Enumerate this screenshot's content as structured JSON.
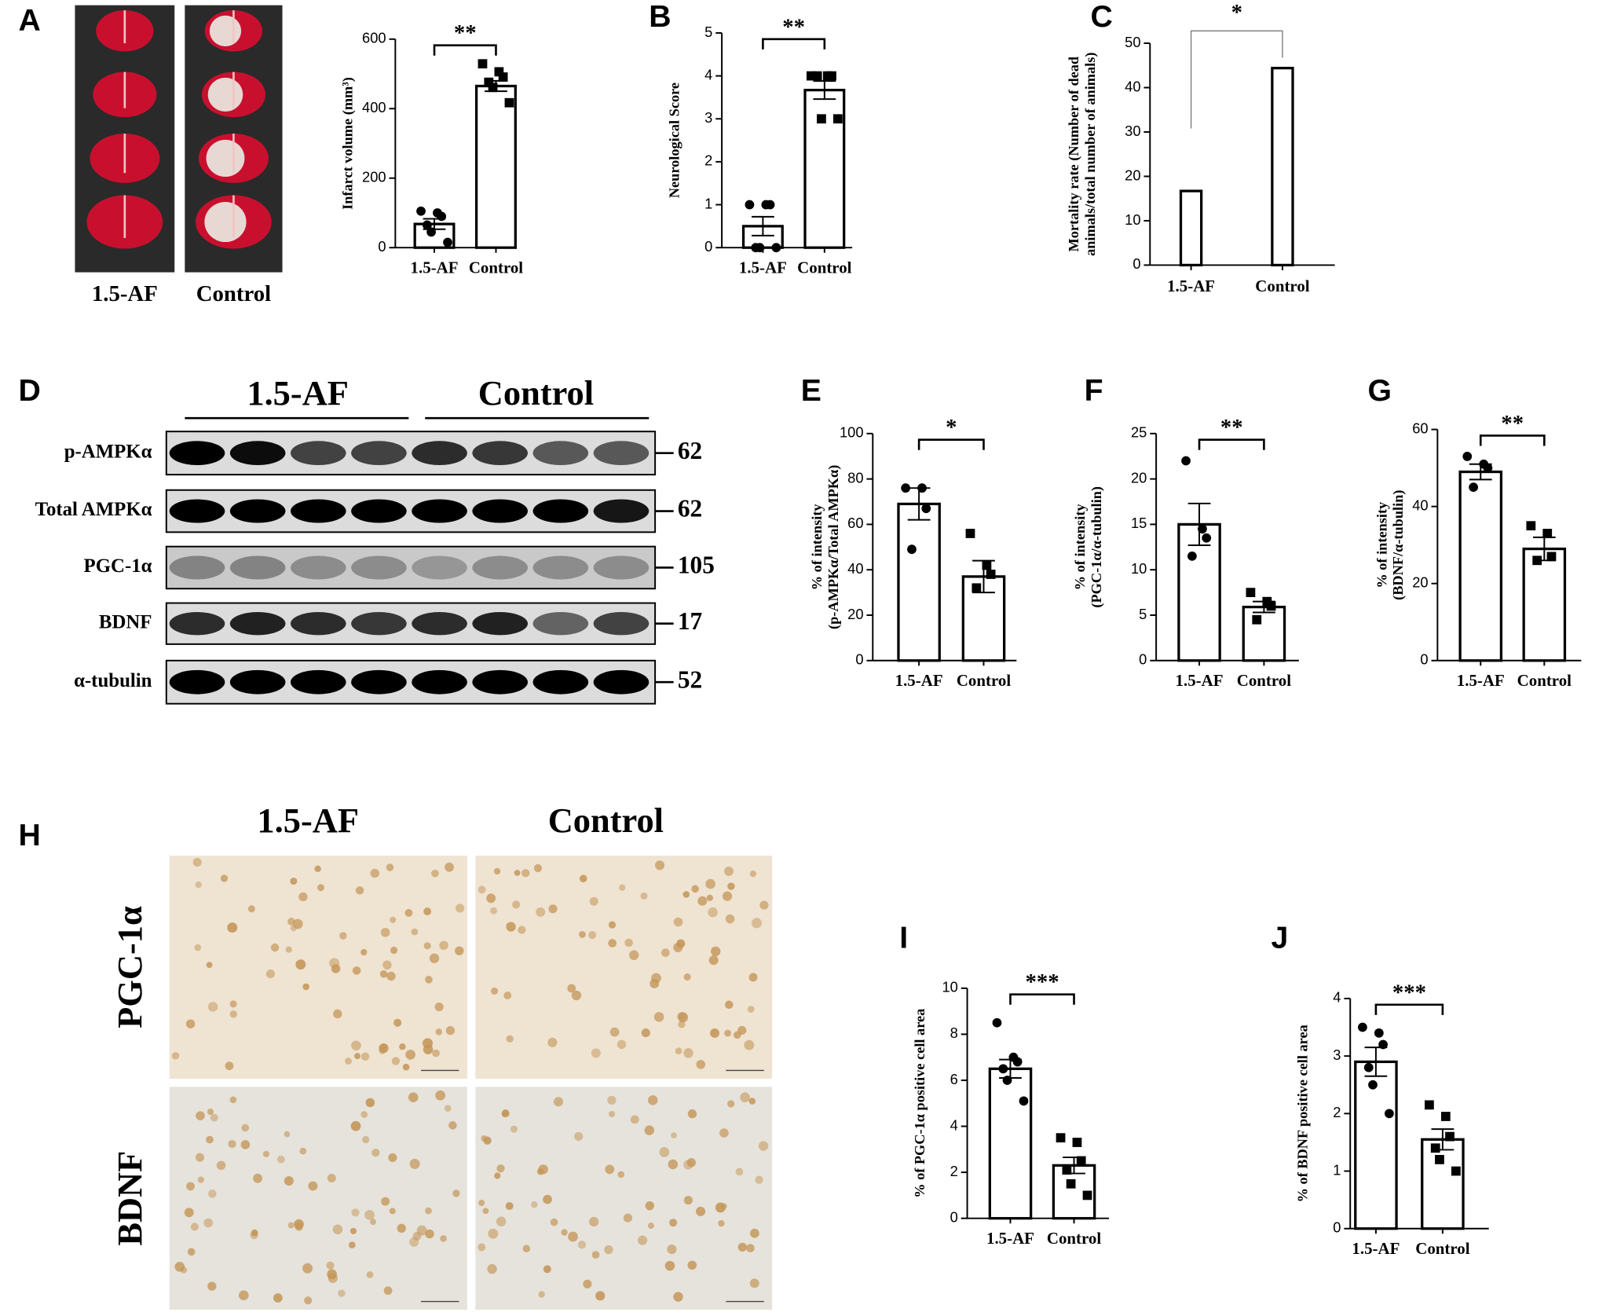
{
  "figure": {
    "panel_letters": [
      "A",
      "B",
      "C",
      "D",
      "E",
      "F",
      "G",
      "H",
      "I",
      "J"
    ],
    "brain_labels": [
      "1.5-AF",
      "Control"
    ],
    "blot_groups": [
      "1.5-AF",
      "Control"
    ],
    "blot_rows": [
      {
        "label": "p-AMPKα",
        "kda": "62"
      },
      {
        "label": "Total AMPKα",
        "kda": "62"
      },
      {
        "label": "PGC-1α",
        "kda": "105"
      },
      {
        "label": "BDNF",
        "kda": "17"
      },
      {
        "label": "α-tubulin",
        "kda": "52"
      }
    ],
    "ihc_columns": [
      "1.5-AF",
      "Control"
    ],
    "ihc_rows": [
      "PGC-1α",
      "BDNF"
    ]
  },
  "chart_data": [
    {
      "type": "bar",
      "categories": [
        "1.5-AF",
        "Control"
      ],
      "values": [
        68,
        465
      ],
      "errors": [
        15,
        15
      ],
      "points": [
        [
          105,
          100,
          90,
          65,
          45,
          15
        ],
        [
          529,
          506,
          491,
          476,
          461,
          417
        ]
      ],
      "ylim": [
        0,
        600
      ],
      "yticks": [
        0,
        200,
        400,
        600
      ],
      "ylabel": [
        "Infarct volume (mm³)"
      ],
      "significance": "**",
      "color": "#000000"
    },
    {
      "type": "bar",
      "categories": [
        "1.5-AF",
        "Control"
      ],
      "values": [
        0.5,
        3.67
      ],
      "errors": [
        0.22,
        0.21
      ],
      "points": [
        [
          1,
          1,
          1,
          0,
          0,
          0
        ],
        [
          4,
          4,
          4,
          4,
          3,
          3
        ]
      ],
      "ylim": [
        0,
        5
      ],
      "yticks": [
        0,
        1,
        2,
        3,
        4,
        5
      ],
      "ylabel": [
        "Neurological Score"
      ],
      "significance": "**",
      "color": "#000000"
    },
    {
      "type": "bar",
      "categories": [
        "1.5-AF",
        "Control"
      ],
      "values": [
        16.7,
        44.4
      ],
      "ylim": [
        0,
        50
      ],
      "yticks": [
        0,
        10,
        20,
        30,
        40,
        50
      ],
      "ylabel": [
        "Mortality rate (Number of dead",
        "animals/total number of animals)"
      ],
      "significance": "*",
      "color": "#000000"
    },
    {
      "type": "bar",
      "categories": [
        "1.5-AF",
        "Control"
      ],
      "values": [
        69,
        37
      ],
      "errors": [
        7,
        7
      ],
      "points": [
        [
          76,
          76,
          67,
          49
        ],
        [
          56,
          42,
          38,
          32
        ]
      ],
      "ylim": [
        0,
        100
      ],
      "yticks": [
        0,
        20,
        40,
        60,
        80,
        100
      ],
      "ylabel": [
        "% of intensity",
        "(p-AMPKα/Total AMPKα)"
      ],
      "significance": "*",
      "color": "#000000"
    },
    {
      "type": "bar",
      "categories": [
        "1.5-AF",
        "Control"
      ],
      "values": [
        15,
        5.9
      ],
      "errors": [
        2.3,
        0.6
      ],
      "points": [
        [
          22,
          14.5,
          13.5,
          11.5
        ],
        [
          7.5,
          6.5,
          6,
          4.5
        ]
      ],
      "ylim": [
        0,
        25
      ],
      "yticks": [
        0,
        5,
        10,
        15,
        20,
        25
      ],
      "ylabel": [
        "% of intensity",
        "(PGC-1α/α-tubulin)"
      ],
      "significance": "**",
      "color": "#000000"
    },
    {
      "type": "bar",
      "categories": [
        "1.5-AF",
        "Control"
      ],
      "values": [
        49,
        29
      ],
      "errors": [
        2,
        3
      ],
      "points": [
        [
          53,
          51,
          50,
          45
        ],
        [
          35,
          33,
          27,
          26
        ]
      ],
      "ylim": [
        0,
        60
      ],
      "yticks": [
        0,
        20,
        40,
        60
      ],
      "ylabel": [
        "% of intensity",
        "(BDNF/α-tubulin)"
      ],
      "significance": "**",
      "color": "#000000"
    },
    {
      "type": "bar",
      "categories": [
        "1.5-AF",
        "Control"
      ],
      "values": [
        6.5,
        2.3
      ],
      "errors": [
        0.4,
        0.35
      ],
      "points": [
        [
          8.5,
          7,
          6.8,
          6.5,
          6,
          5.1
        ],
        [
          3.5,
          3.3,
          2.5,
          2.1,
          1.5,
          1
        ]
      ],
      "ylim": [
        0,
        10
      ],
      "yticks": [
        0,
        2,
        4,
        6,
        8,
        10
      ],
      "ylabel": [
        "% of PGC-1α positive cell area"
      ],
      "significance": "***",
      "color": "#000000"
    },
    {
      "type": "bar",
      "categories": [
        "1.5-AF",
        "Control"
      ],
      "values": [
        2.9,
        1.55
      ],
      "errors": [
        0.25,
        0.18
      ],
      "points": [
        [
          3.5,
          3.4,
          3.2,
          2.8,
          2.5,
          2
        ],
        [
          2.15,
          1.95,
          1.6,
          1.4,
          1.2,
          1
        ]
      ],
      "ylim": [
        0,
        4
      ],
      "yticks": [
        0,
        1,
        2,
        3,
        4
      ],
      "ylabel": [
        "% of BDNF positive cell area"
      ],
      "significance": "***",
      "color": "#000000"
    }
  ]
}
